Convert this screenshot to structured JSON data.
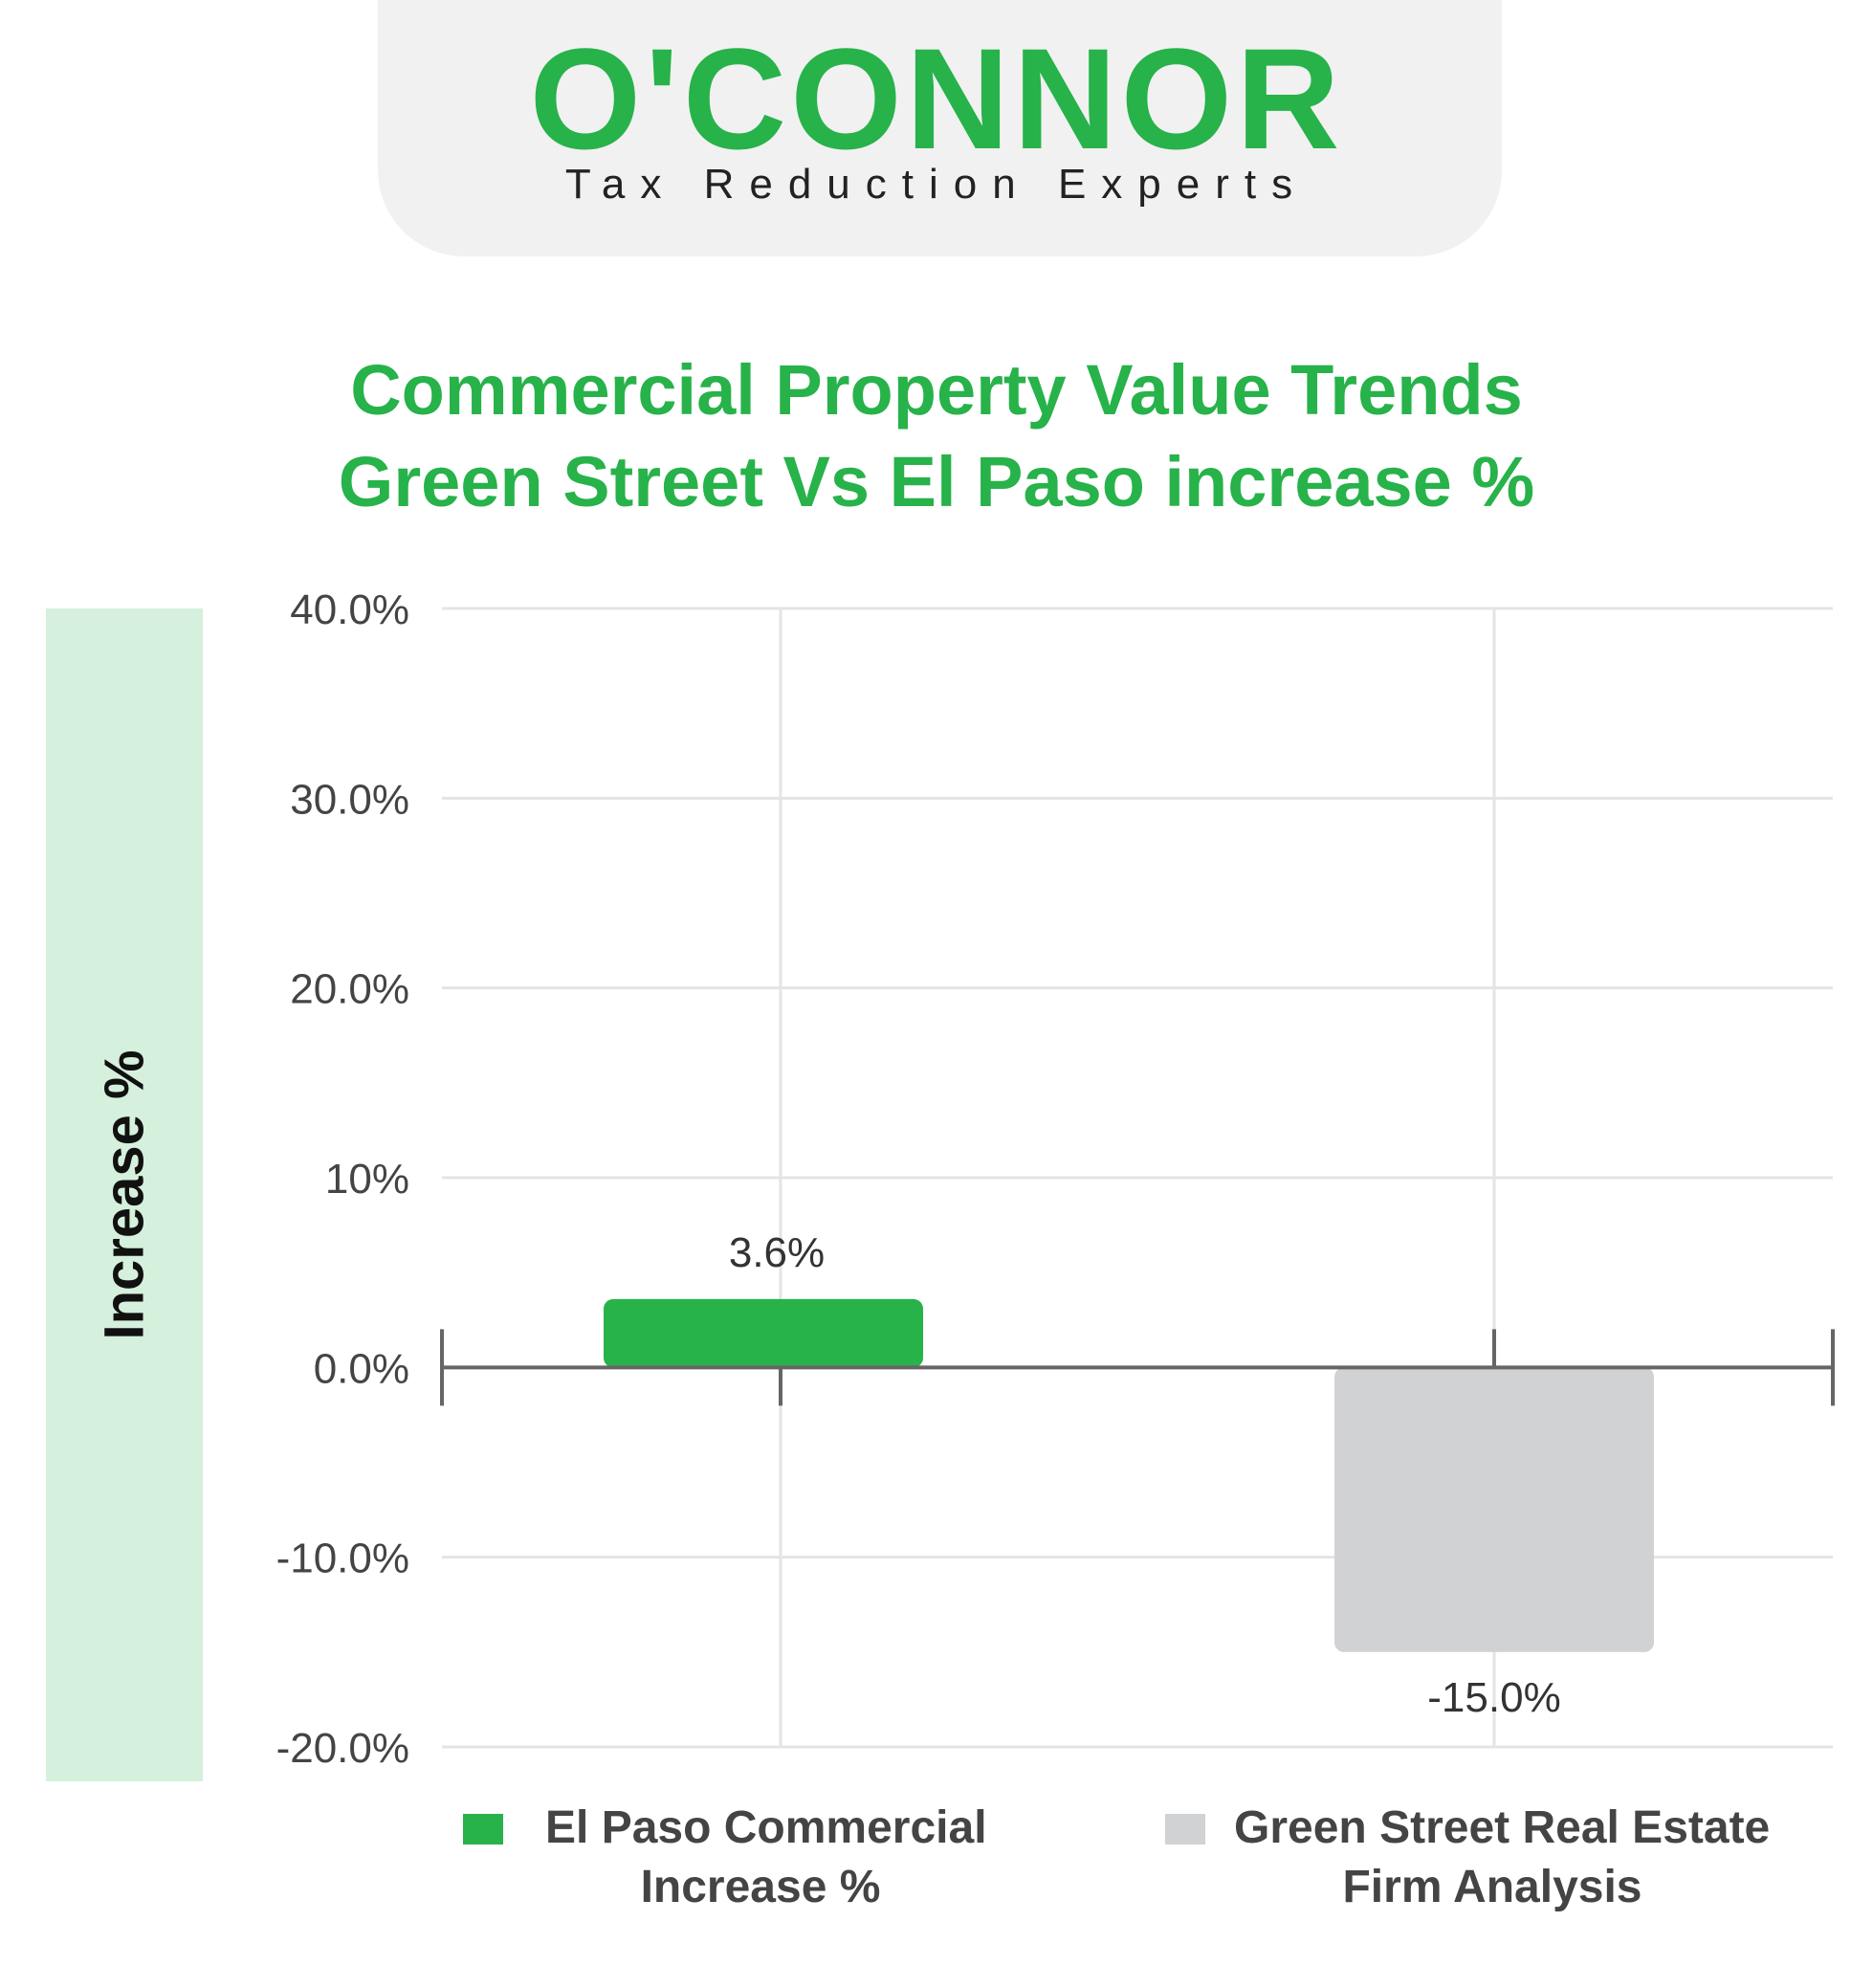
{
  "logo": {
    "name": "O'CONNOR",
    "tagline": "Tax Reduction Experts"
  },
  "title_line1": "Commercial Property Value Trends",
  "title_line2": "Green Street Vs El Paso increase %",
  "colors": {
    "brand_green": "#27b24a",
    "bar_gray": "#d1d2d4",
    "axis_panel": "#d5f0dc"
  },
  "chart_data": {
    "type": "bar",
    "title": "Commercial Property Value Trends Green Street Vs El Paso increase %",
    "ylabel": "Increase %",
    "ylim": [
      -20,
      40
    ],
    "yticks": [
      40,
      30,
      20,
      10,
      0,
      -10,
      -20
    ],
    "ytick_labels": [
      "40.0%",
      "30.0%",
      "20.0%",
      "10%",
      "0.0%",
      "-10.0%",
      "-20.0%"
    ],
    "grid": true,
    "legend_position": "bottom",
    "series": [
      {
        "name": "El Paso Commercial Increase %",
        "value": 3.6,
        "label": "3.6%",
        "color": "#27b24a"
      },
      {
        "name": "Green Street Real Estate Firm Analysis",
        "value": -15.0,
        "label": "-15.0%",
        "color": "#d1d2d4"
      }
    ]
  },
  "legend": {
    "item1_line1": "El Paso Commercial",
    "item1_line2": "Increase %",
    "item2_line1": "Green Street Real Estate",
    "item2_line2": "Firm Analysis"
  }
}
